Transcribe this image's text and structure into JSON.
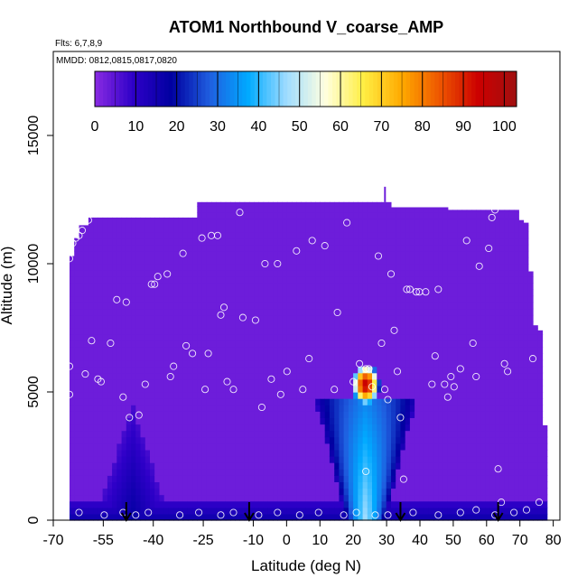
{
  "chart_data": {
    "type": "heatmap",
    "title": "ATOM1 Northbound V_coarse_AMP",
    "flights_label": "Flts: 6,7,8,9",
    "dates_label": "MMDD: 0812,0815,0817,0820",
    "xlabel": "Latitude (deg N)",
    "ylabel": "Altitude (m)",
    "xlim": [
      -70,
      82
    ],
    "ylim": [
      0,
      17500
    ],
    "x_ticks": [
      -70,
      -55,
      -40,
      -25,
      -10,
      0,
      10,
      20,
      30,
      40,
      50,
      60,
      70,
      80
    ],
    "x_tick_labels": [
      "-70",
      "-55",
      "-40",
      "-25",
      "-10",
      "0",
      "10",
      "20",
      "30",
      "40",
      "50",
      "60",
      "70",
      "80"
    ],
    "y_ticks": [
      0,
      5000,
      10000,
      15000
    ],
    "y_tick_labels": [
      "0",
      "5000",
      "10000",
      "15000"
    ],
    "colorbar": {
      "range": [
        0,
        103
      ],
      "ticks": [
        0,
        10,
        20,
        30,
        40,
        50,
        60,
        70,
        80,
        90,
        100
      ],
      "tick_labels": [
        "0",
        "10",
        "20",
        "30",
        "40",
        "50",
        "60",
        "70",
        "80",
        "90",
        "100"
      ],
      "colors": [
        "#8a2be2",
        "#2e00c8",
        "#0000a0",
        "#1f5fe0",
        "#00aaff",
        "#9fdcff",
        "#ffffe0",
        "#ffee44",
        "#ffaa00",
        "#ee5500",
        "#cc0000",
        "#a01010"
      ]
    },
    "background_value": 3,
    "ceiling": [
      [
        -69,
        10300
      ],
      [
        -68,
        11000
      ],
      [
        -66,
        11500
      ],
      [
        -63,
        11800
      ],
      [
        -30,
        11800
      ],
      [
        -29,
        12400
      ],
      [
        31,
        12400
      ],
      [
        32,
        12200
      ],
      [
        50,
        12200
      ],
      [
        51,
        12100
      ],
      [
        72,
        12100
      ],
      [
        73,
        11700
      ],
      [
        75,
        11600
      ],
      [
        76,
        9700
      ],
      [
        77,
        7600
      ],
      [
        79,
        7400
      ],
      [
        80,
        6100
      ],
      [
        80,
        5900
      ],
      [
        81,
        3700
      ],
      [
        82,
        0
      ]
    ],
    "features": [
      {
        "name": "southern boundary-layer plume",
        "lat": -49,
        "top": 4500,
        "width": 12,
        "peak": 14
      },
      {
        "name": "main coarse-mode plume",
        "lat": 25,
        "top": 4700,
        "width": 16,
        "peak": 38
      },
      {
        "name": "saharan dust core",
        "lat": 25,
        "alt": 5300,
        "peak": 95
      },
      {
        "name": "surface layer",
        "alt": 0,
        "top": 800,
        "peak": 20
      }
    ],
    "flight_track_points": [
      [
        -69,
        10200
      ],
      [
        -68,
        10800
      ],
      [
        -67,
        11000
      ],
      [
        -66,
        11100
      ],
      [
        -65,
        11300
      ],
      [
        -63,
        11700
      ],
      [
        -69,
        6000
      ],
      [
        -69,
        4900
      ],
      [
        -64,
        5700
      ],
      [
        -62,
        7000
      ],
      [
        -60,
        5500
      ],
      [
        -59,
        5400
      ],
      [
        -56,
        6900
      ],
      [
        -54,
        8600
      ],
      [
        -52,
        4800
      ],
      [
        -51,
        8500
      ],
      [
        -50,
        4000
      ],
      [
        -47,
        4100
      ],
      [
        -45,
        5300
      ],
      [
        -43,
        9200
      ],
      [
        -42,
        9200
      ],
      [
        -41,
        9500
      ],
      [
        -38,
        9600
      ],
      [
        -37,
        5600
      ],
      [
        -36,
        6000
      ],
      [
        -33,
        10400
      ],
      [
        -32,
        6800
      ],
      [
        -30,
        6500
      ],
      [
        -27,
        11000
      ],
      [
        -26,
        5100
      ],
      [
        -25,
        6500
      ],
      [
        -24,
        11100
      ],
      [
        -22,
        11100
      ],
      [
        -21,
        8000
      ],
      [
        -20,
        8300
      ],
      [
        -19,
        5400
      ],
      [
        -17,
        5100
      ],
      [
        -15,
        12000
      ],
      [
        -14,
        7900
      ],
      [
        -10,
        7800
      ],
      [
        -8,
        4400
      ],
      [
        -7,
        10000
      ],
      [
        -5,
        5500
      ],
      [
        -3,
        10000
      ],
      [
        -2,
        4900
      ],
      [
        0,
        5800
      ],
      [
        3,
        10500
      ],
      [
        5,
        5100
      ],
      [
        7,
        6300
      ],
      [
        8,
        10900
      ],
      [
        12,
        10700
      ],
      [
        15,
        5100
      ],
      [
        16,
        8100
      ],
      [
        19,
        11600
      ],
      [
        21,
        5400
      ],
      [
        23,
        6100
      ],
      [
        25,
        5900
      ],
      [
        26,
        5900
      ],
      [
        27,
        5200
      ],
      [
        29,
        10300
      ],
      [
        30,
        6900
      ],
      [
        31,
        5100
      ],
      [
        32,
        4700
      ],
      [
        33,
        9600
      ],
      [
        34,
        7400
      ],
      [
        35,
        5800
      ],
      [
        36,
        4000
      ],
      [
        37,
        1600
      ],
      [
        38,
        9000
      ],
      [
        39,
        9000
      ],
      [
        41,
        8900
      ],
      [
        42,
        8900
      ],
      [
        44,
        8900
      ],
      [
        46,
        5300
      ],
      [
        47,
        6400
      ],
      [
        48,
        9000
      ],
      [
        50,
        5300
      ],
      [
        51,
        4800
      ],
      [
        52,
        5600
      ],
      [
        53,
        5200
      ],
      [
        55,
        5900
      ],
      [
        57,
        10900
      ],
      [
        59,
        6900
      ],
      [
        60,
        5600
      ],
      [
        61,
        9900
      ],
      [
        64,
        10600
      ],
      [
        65,
        11800
      ],
      [
        66,
        12100
      ],
      [
        67,
        2000
      ],
      [
        68,
        700
      ],
      [
        69,
        6100
      ],
      [
        70,
        5800
      ],
      [
        78,
        6300
      ],
      [
        79,
        10300
      ],
      [
        80,
        700
      ],
      [
        25,
        1900
      ],
      [
        -66,
        300
      ],
      [
        -58,
        200
      ],
      [
        -52,
        300
      ],
      [
        -48,
        200
      ],
      [
        -44,
        300
      ],
      [
        -34,
        200
      ],
      [
        -28,
        300
      ],
      [
        -21,
        200
      ],
      [
        -17,
        300
      ],
      [
        -9,
        200
      ],
      [
        -3,
        300
      ],
      [
        4,
        200
      ],
      [
        10,
        300
      ],
      [
        18,
        200
      ],
      [
        22,
        300
      ],
      [
        28,
        200
      ],
      [
        32,
        200
      ],
      [
        40,
        300
      ],
      [
        48,
        200
      ],
      [
        55,
        300
      ],
      [
        60,
        400
      ],
      [
        66,
        200
      ],
      [
        72,
        300
      ],
      [
        76,
        400
      ]
    ],
    "arrows_lat": [
      -51,
      -12,
      36,
      67
    ]
  }
}
